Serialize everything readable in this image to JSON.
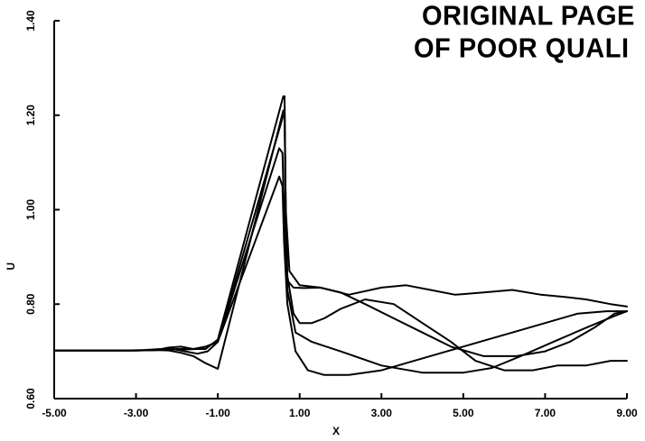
{
  "stamp": {
    "line1": "ORIGINAL PAGE",
    "line2": "OF POOR QUALI"
  },
  "chart_data": {
    "type": "line",
    "title": "",
    "xlabel": "X",
    "ylabel": "U",
    "xlim": [
      -5.0,
      9.0
    ],
    "ylim": [
      0.6,
      1.4
    ],
    "x_ticks": [
      "-5.00",
      "-3.00",
      "-1.00",
      "1.00",
      "3.00",
      "5.00",
      "7.00",
      "9.00"
    ],
    "y_ticks": [
      "0.60",
      "0.80",
      "1.00",
      "1.20",
      "1.40"
    ],
    "grid": false,
    "legend": "none",
    "series": [
      {
        "x": [
          -5,
          -2.9,
          -2.4,
          -2.0,
          -1.6,
          -1.3,
          -1.0,
          0.5,
          0.58,
          0.62,
          0.7,
          0.9,
          1.2,
          1.6,
          2.2,
          3.0,
          3.8,
          4.6,
          5.4,
          6.2,
          7.0,
          7.8,
          8.5,
          9.0
        ],
        "y": [
          0.702,
          0.702,
          0.703,
          0.705,
          0.705,
          0.71,
          0.72,
          1.07,
          1.05,
          0.93,
          0.8,
          0.7,
          0.66,
          0.65,
          0.65,
          0.66,
          0.68,
          0.7,
          0.72,
          0.74,
          0.76,
          0.78,
          0.785,
          0.785
        ]
      },
      {
        "x": [
          -5,
          -3.0,
          -2.6,
          -2.2,
          -1.8,
          -1.5,
          -1.3,
          -1.0,
          0.5,
          0.58,
          0.62,
          0.7,
          0.9,
          1.3,
          2.0,
          3.0,
          4.0,
          5.0,
          5.7,
          6.4,
          7.2,
          8.0,
          8.7,
          9.0
        ],
        "y": [
          0.702,
          0.702,
          0.703,
          0.704,
          0.704,
          0.705,
          0.71,
          0.72,
          1.13,
          1.12,
          0.99,
          0.83,
          0.74,
          0.72,
          0.7,
          0.67,
          0.655,
          0.655,
          0.665,
          0.69,
          0.72,
          0.75,
          0.775,
          0.785
        ]
      },
      {
        "x": [
          -5,
          -3.2,
          -2.8,
          -2.4,
          -2.1,
          -1.8,
          -1.5,
          -1.25,
          -1.0,
          0.6,
          0.63,
          0.66,
          0.7,
          0.85,
          1.0,
          1.3,
          1.6,
          2.0,
          2.6,
          3.3,
          4.0,
          4.7,
          5.3,
          6.0,
          6.7,
          7.3,
          8.0,
          8.6,
          9.0
        ],
        "y": [
          0.702,
          0.702,
          0.703,
          0.705,
          0.705,
          0.7,
          0.695,
          0.7,
          0.72,
          1.2,
          1.2,
          1.0,
          0.86,
          0.78,
          0.76,
          0.76,
          0.77,
          0.79,
          0.81,
          0.8,
          0.76,
          0.72,
          0.68,
          0.66,
          0.66,
          0.67,
          0.67,
          0.68,
          0.68
        ]
      },
      {
        "x": [
          -5,
          -3.0,
          -2.5,
          -2.2,
          -1.9,
          -1.6,
          -1.3,
          -1.0,
          0.6,
          0.63,
          0.66,
          0.7,
          0.85,
          1.1,
          1.5,
          2.0,
          2.6,
          3.3,
          4.0,
          4.7,
          5.5,
          6.3,
          7.0,
          7.6,
          8.2,
          8.7,
          9.0
        ],
        "y": [
          0.702,
          0.702,
          0.703,
          0.702,
          0.697,
          0.69,
          0.675,
          0.663,
          1.21,
          1.21,
          1.0,
          0.85,
          0.835,
          0.834,
          0.835,
          0.825,
          0.8,
          0.77,
          0.74,
          0.71,
          0.69,
          0.69,
          0.7,
          0.72,
          0.75,
          0.78,
          0.785
        ]
      },
      {
        "x": [
          -5,
          -3.0,
          -2.5,
          -2.2,
          -1.9,
          -1.6,
          -1.3,
          -1.0,
          0.6,
          0.63,
          0.66,
          0.75,
          1.0,
          1.5,
          2.2,
          3.0,
          3.6,
          4.2,
          4.8,
          5.5,
          6.2,
          6.9,
          7.5,
          8.0,
          8.6,
          9.0
        ],
        "y": [
          0.702,
          0.702,
          0.703,
          0.708,
          0.71,
          0.705,
          0.705,
          0.725,
          1.24,
          1.24,
          1.0,
          0.87,
          0.84,
          0.835,
          0.82,
          0.835,
          0.84,
          0.83,
          0.82,
          0.825,
          0.83,
          0.82,
          0.815,
          0.81,
          0.8,
          0.795
        ]
      }
    ]
  }
}
